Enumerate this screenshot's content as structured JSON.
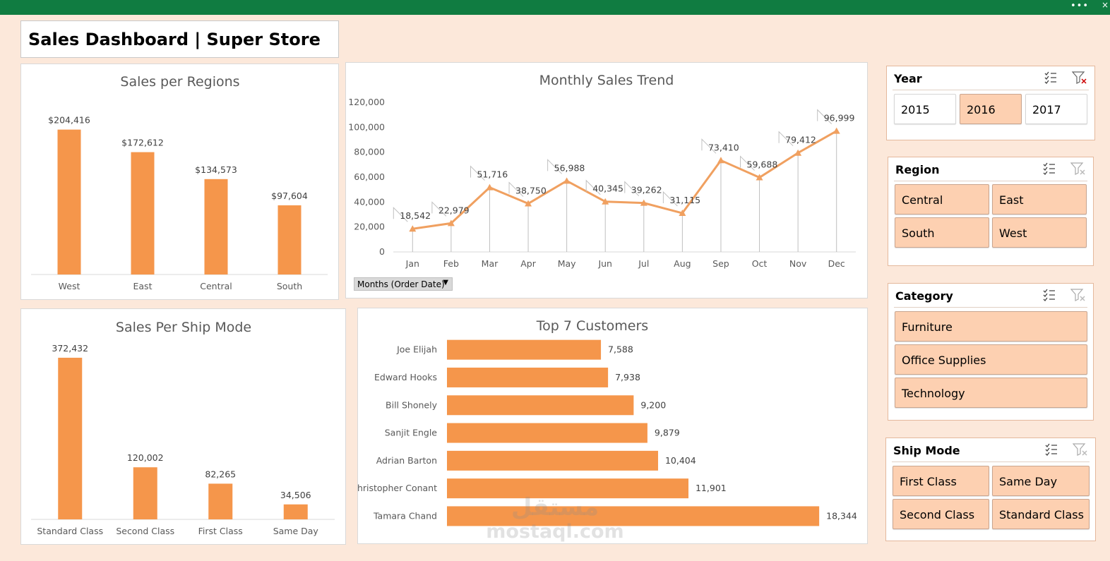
{
  "dashboard_title": "Sales Dashboard | Super Store",
  "window_controls": {
    "more": "•••",
    "close": "×"
  },
  "months_dropdown": {
    "label": "Months (Order Date)",
    "caret": "▼"
  },
  "watermark": {
    "arabic": "مستقل",
    "latin": "mostaql.com"
  },
  "colors": {
    "bar": "#f5964b",
    "line": "#f0a060",
    "header": "#107c41",
    "background": "#fce8da",
    "slicer_selected": "#fdd0b1"
  },
  "chart_data": [
    {
      "id": "regions",
      "type": "bar",
      "title": "Sales per Regions",
      "categories": [
        "West",
        "East",
        "Central",
        "South"
      ],
      "values": [
        204416,
        172612,
        134573,
        97604
      ],
      "labels": [
        "$204,416",
        "$172,612",
        "$134,573",
        "$97,604"
      ],
      "ylim": [
        0,
        220000
      ]
    },
    {
      "id": "monthly",
      "type": "line",
      "title": "Monthly Sales Trend",
      "categories": [
        "Jan",
        "Feb",
        "Mar",
        "Apr",
        "May",
        "Jun",
        "Jul",
        "Aug",
        "Sep",
        "Oct",
        "Nov",
        "Dec"
      ],
      "values": [
        18542,
        22979,
        51716,
        38750,
        56988,
        40345,
        39262,
        31115,
        73410,
        59688,
        79412,
        96999
      ],
      "labels": [
        "18,542",
        "22,979",
        "51,716",
        "38,750",
        "56,988",
        "40,345",
        "39,262",
        "31,115",
        "73,410",
        "59,688",
        "79,412",
        "96,999"
      ],
      "yticks": [
        "0",
        "20,000",
        "40,000",
        "60,000",
        "80,000",
        "100,000",
        "120,000"
      ],
      "ylim": [
        0,
        120000
      ]
    },
    {
      "id": "shipmode",
      "type": "bar",
      "title": "Sales Per Ship Mode",
      "categories": [
        "Standard Class",
        "Second Class",
        "First Class",
        "Same Day"
      ],
      "values": [
        372432,
        120002,
        82265,
        34506
      ],
      "labels": [
        "372,432",
        "120,002",
        "82,265",
        "34,506"
      ],
      "ylim": [
        0,
        400000
      ]
    },
    {
      "id": "customers",
      "type": "bar",
      "orientation": "horizontal",
      "title": "Top 7 Customers",
      "categories": [
        "Joe Elijah",
        "Edward Hooks",
        "Bill Shonely",
        "Sanjit Engle",
        "Adrian Barton",
        "Christopher Conant",
        "Tamara Chand"
      ],
      "values": [
        7588,
        7938,
        9200,
        9879,
        10404,
        11901,
        18344
      ],
      "labels": [
        "7,588",
        "7,938",
        "9,200",
        "9,879",
        "10,404",
        "11,901",
        "18,344"
      ],
      "xlim": [
        0,
        19000
      ]
    }
  ],
  "slicers": {
    "year": {
      "title": "Year",
      "items": [
        {
          "label": "2015",
          "selected": false
        },
        {
          "label": "2016",
          "selected": true
        },
        {
          "label": "2017",
          "selected": false
        }
      ]
    },
    "region": {
      "title": "Region",
      "items": [
        {
          "label": "Central",
          "selected": true
        },
        {
          "label": "East",
          "selected": true
        },
        {
          "label": "South",
          "selected": true
        },
        {
          "label": "West",
          "selected": true
        }
      ]
    },
    "category": {
      "title": "Category",
      "items": [
        {
          "label": "Furniture",
          "selected": true
        },
        {
          "label": "Office Supplies",
          "selected": true
        },
        {
          "label": "Technology",
          "selected": true
        }
      ]
    },
    "shipmode": {
      "title": "Ship Mode",
      "items": [
        {
          "label": "First Class",
          "selected": true
        },
        {
          "label": "Same Day",
          "selected": true
        },
        {
          "label": "Second Class",
          "selected": true
        },
        {
          "label": "Standard Class",
          "selected": true
        }
      ]
    }
  }
}
